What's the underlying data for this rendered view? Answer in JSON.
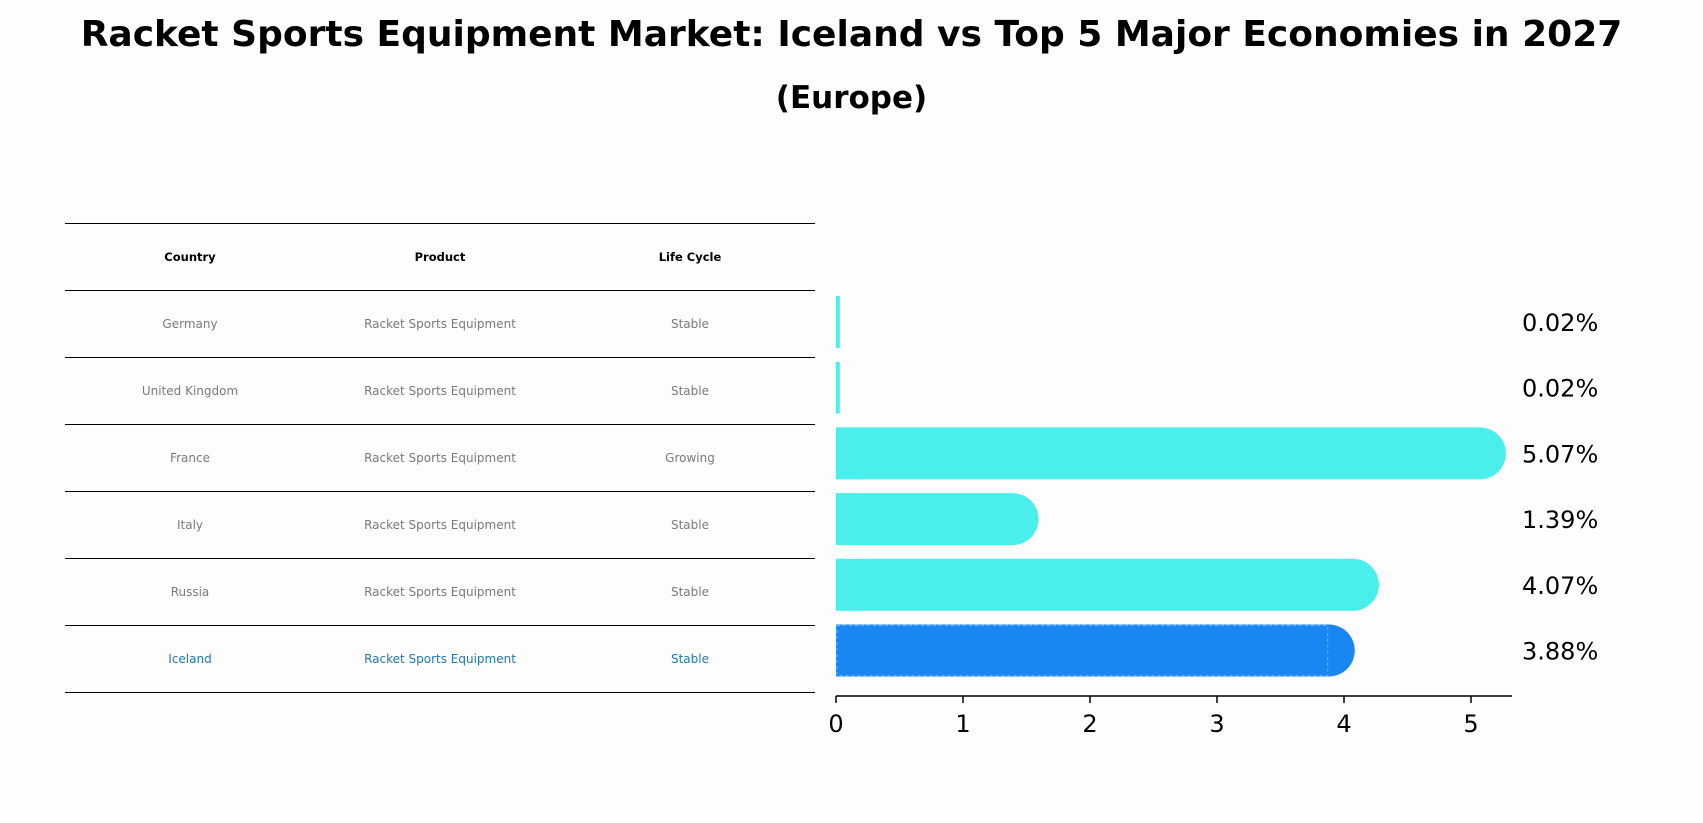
{
  "title": "Racket Sports Equipment Market: Iceland vs Top 5 Major Economies in 2027",
  "subtitle": "(Europe)",
  "table": {
    "headers": [
      "Country",
      "Product",
      "Life Cycle"
    ],
    "rows": [
      {
        "country": "Germany",
        "product": "Racket Sports Equipment",
        "life_cycle": "Stable"
      },
      {
        "country": "United Kingdom",
        "product": "Racket Sports Equipment",
        "life_cycle": "Stable"
      },
      {
        "country": "France",
        "product": "Racket Sports Equipment",
        "life_cycle": "Growing"
      },
      {
        "country": "Italy",
        "product": "Racket Sports Equipment",
        "life_cycle": "Stable"
      },
      {
        "country": "Russia",
        "product": "Racket Sports Equipment",
        "life_cycle": "Stable"
      },
      {
        "country": "Iceland",
        "product": "Racket Sports Equipment",
        "life_cycle": "Stable"
      }
    ]
  },
  "colors": {
    "bar": "#4aeeea",
    "highlight_bar": "#1a86f2",
    "highlight_text": "#1f77b4",
    "muted_text": "#7a7a7a"
  },
  "chart_data": {
    "type": "bar",
    "orientation": "horizontal",
    "categories": [
      "Germany",
      "United Kingdom",
      "France",
      "Italy",
      "Russia",
      "Iceland"
    ],
    "values": [
      0.02,
      0.02,
      5.07,
      1.39,
      4.07,
      3.88
    ],
    "labels": [
      "0.02%",
      "0.02%",
      "5.07%",
      "1.39%",
      "4.07%",
      "3.88%"
    ],
    "highlight": "Iceland",
    "xlim": [
      0,
      5.3
    ],
    "xticks": [
      0,
      1,
      2,
      3,
      4,
      5
    ],
    "xlabel": "",
    "ylabel": ""
  }
}
